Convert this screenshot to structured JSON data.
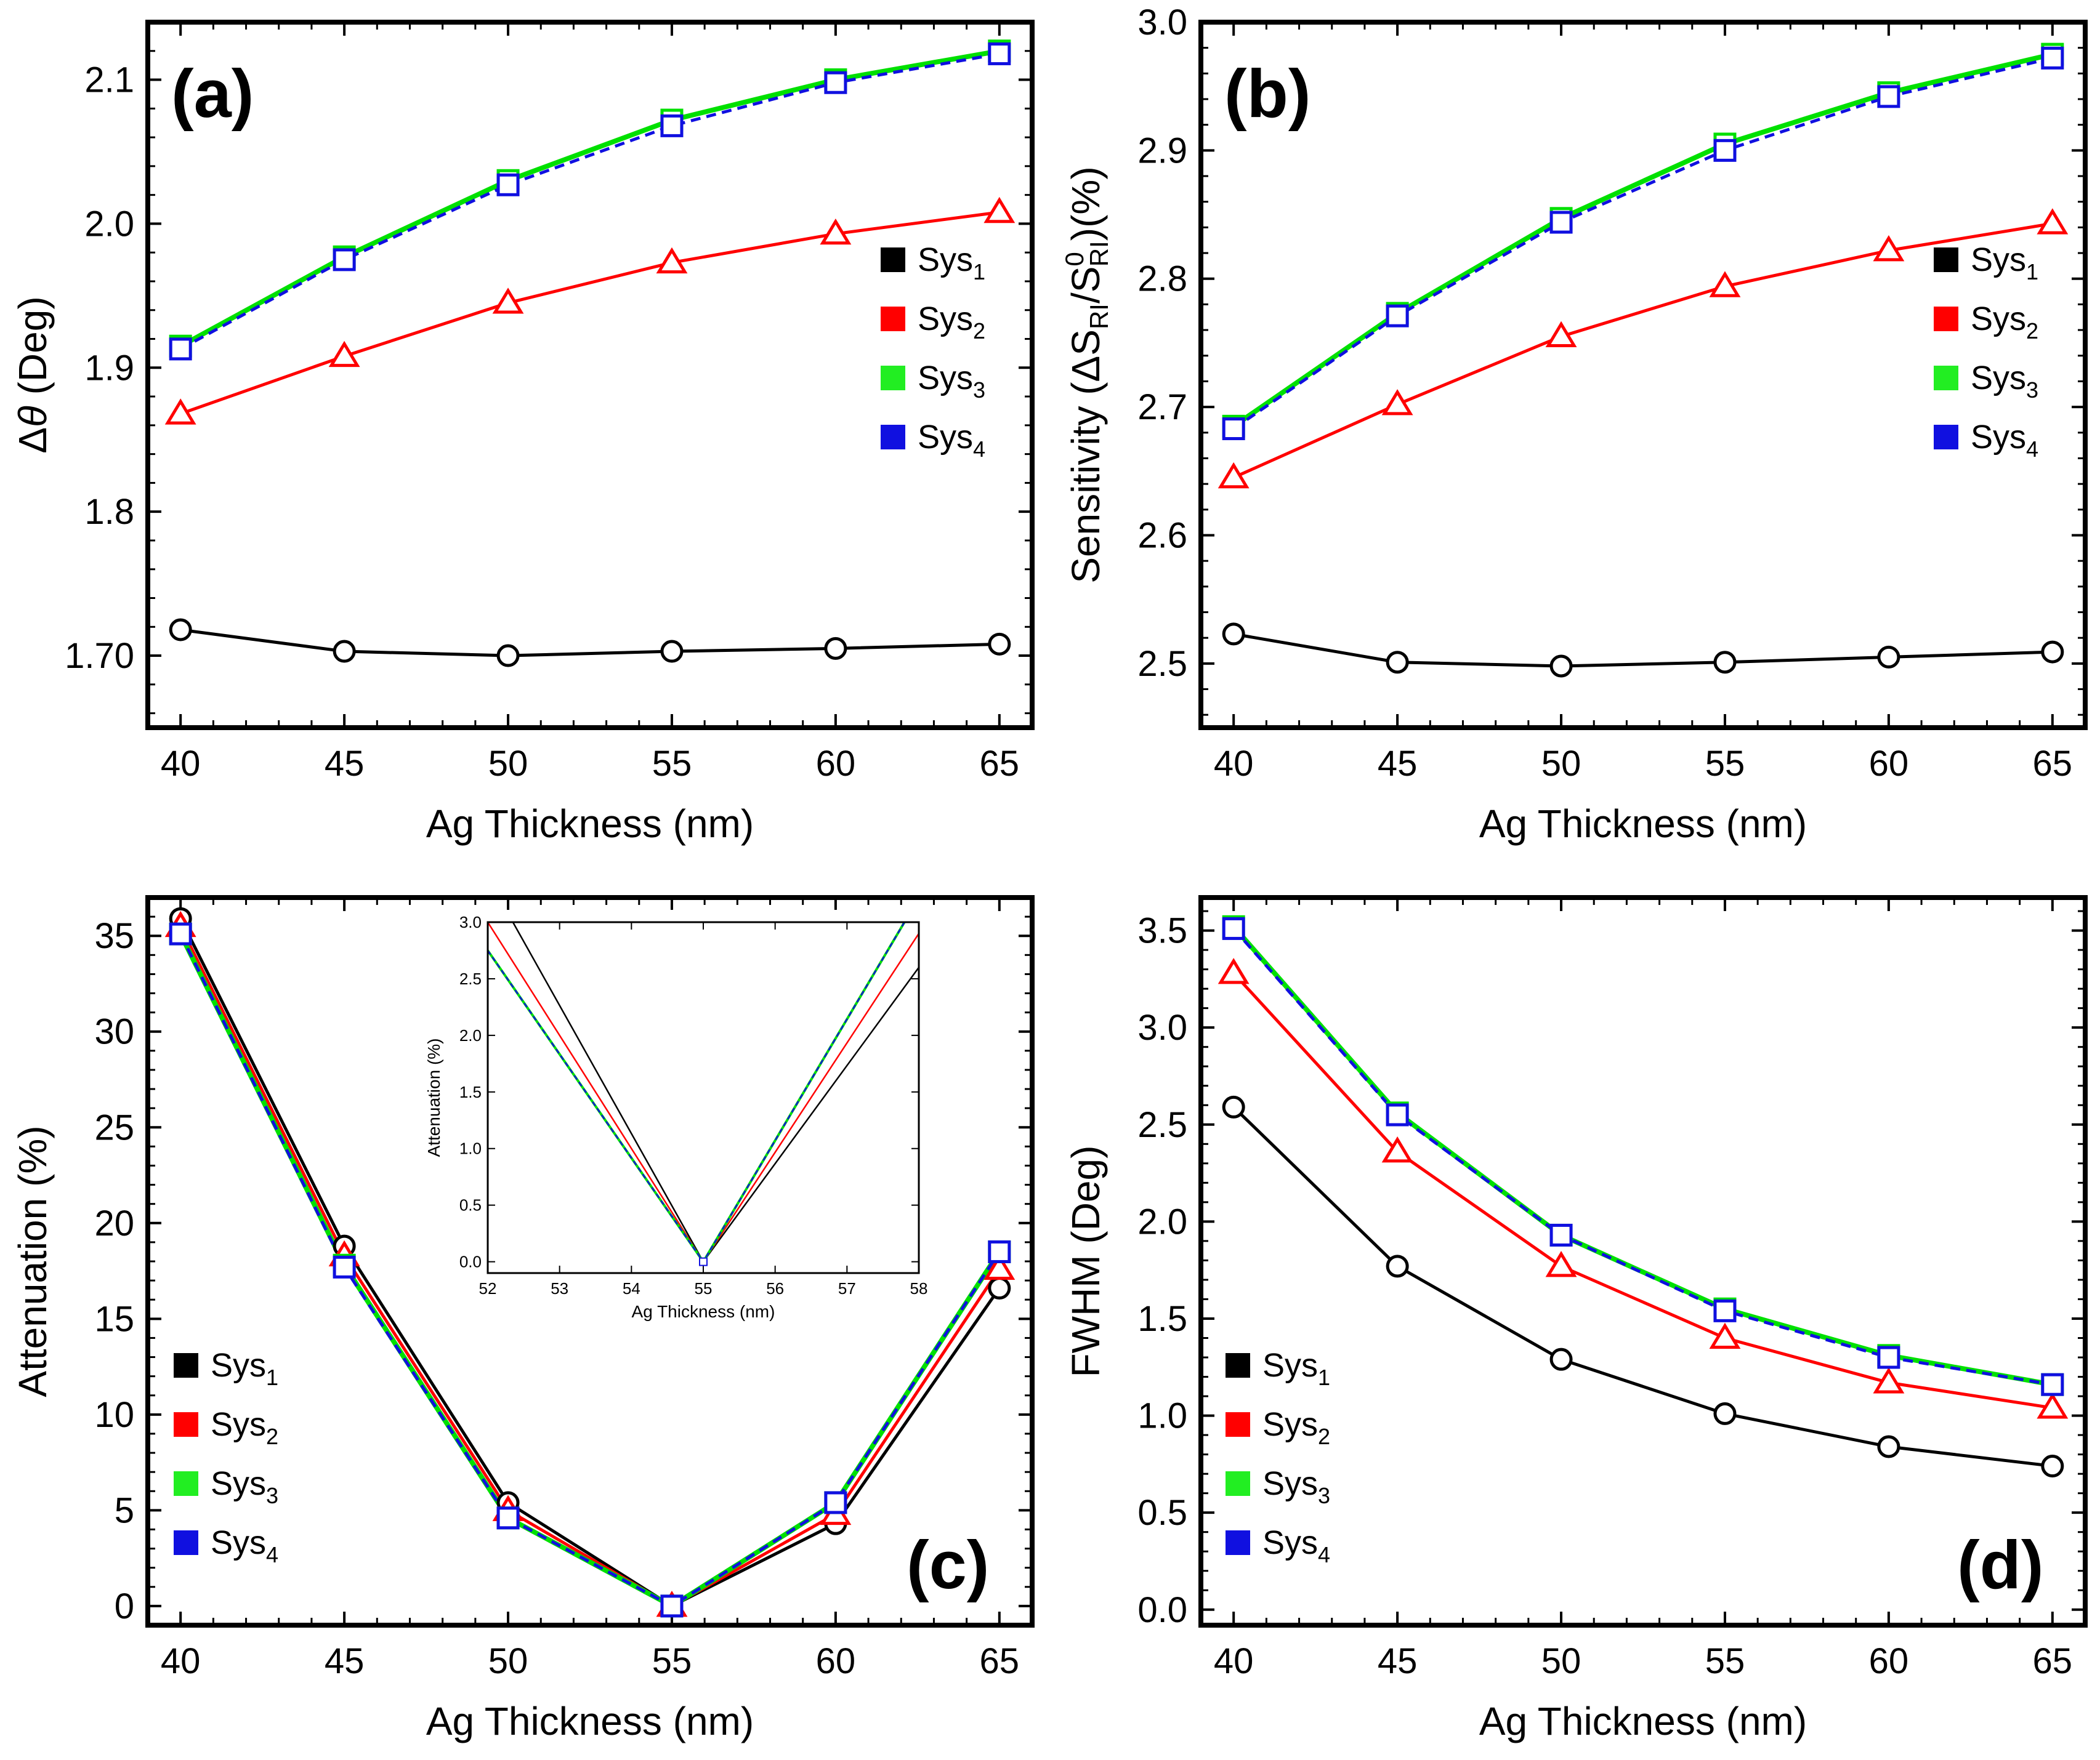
{
  "figure": {
    "panels": [
      "a",
      "b",
      "c",
      "d"
    ]
  },
  "colors": {
    "sys1": "#000000",
    "sys2": "#ff0000",
    "sys3": "#00e000",
    "sys4": "#1010e0"
  },
  "legend": [
    {
      "base": "Sys",
      "sub": "1",
      "color": "#000000"
    },
    {
      "base": "Sys",
      "sub": "2",
      "color": "#ff0000"
    },
    {
      "base": "Sys",
      "sub": "3",
      "color": "#22ee22"
    },
    {
      "base": "Sys",
      "sub": "4",
      "color": "#1010e0"
    }
  ],
  "chart_data": [
    {
      "id": "a",
      "label": "(a)",
      "type": "line",
      "xlabel": "Ag Thickness (nm)",
      "ylabel": "Δθ (Deg)",
      "ylabel_parts": {
        "delta": "Δ",
        "theta": "θ",
        "rest": " (Deg)"
      },
      "x": [
        40,
        45,
        50,
        55,
        60,
        65
      ],
      "xlim": [
        39,
        66
      ],
      "ylim": [
        1.65,
        2.14
      ],
      "xticks": [
        40,
        45,
        50,
        55,
        60,
        65
      ],
      "yticks": [
        1.7,
        1.8,
        1.9,
        2.0,
        2.1
      ],
      "ytick_labels": [
        "1.70",
        "1.8",
        "1.9",
        "2.0",
        "2.1"
      ],
      "series": [
        {
          "name": "Sys1",
          "marker": "circle",
          "values": [
            1.718,
            1.703,
            1.7,
            1.703,
            1.705,
            1.708
          ]
        },
        {
          "name": "Sys2",
          "marker": "triangle",
          "values": [
            1.868,
            1.908,
            1.945,
            1.973,
            1.993,
            2.008
          ]
        },
        {
          "name": "Sys3",
          "marker": "square",
          "values": [
            1.915,
            1.977,
            2.03,
            2.072,
            2.1,
            2.12
          ]
        },
        {
          "name": "Sys4",
          "marker": "square",
          "values": [
            1.913,
            1.975,
            2.027,
            2.068,
            2.098,
            2.118
          ]
        }
      ]
    },
    {
      "id": "b",
      "label": "(b)",
      "type": "line",
      "xlabel": "Ag Thickness (nm)",
      "ylabel": "Sensitivity (ΔSRI/S0RI)(%)",
      "ylabel_parts": {
        "pre": "Sensitivity (ΔS",
        "sub1": "RI",
        "mid": "/S",
        "sup": "0",
        "sub2": "RI",
        "post": ")(%)"
      },
      "x": [
        40,
        45,
        50,
        55,
        60,
        65
      ],
      "xlim": [
        39,
        66
      ],
      "ylim": [
        2.45,
        3.0
      ],
      "xticks": [
        40,
        45,
        50,
        55,
        60,
        65
      ],
      "yticks": [
        2.5,
        2.6,
        2.7,
        2.8,
        2.9,
        3.0
      ],
      "ytick_labels": [
        "2.5",
        "2.6",
        "2.7",
        "2.8",
        "2.9",
        "3.0"
      ],
      "series": [
        {
          "name": "Sys1",
          "marker": "circle",
          "values": [
            2.523,
            2.501,
            2.498,
            2.501,
            2.505,
            2.509
          ]
        },
        {
          "name": "Sys2",
          "marker": "triangle",
          "values": [
            2.645,
            2.702,
            2.755,
            2.794,
            2.822,
            2.843
          ]
        },
        {
          "name": "Sys3",
          "marker": "square",
          "values": [
            2.685,
            2.773,
            2.847,
            2.905,
            2.945,
            2.975
          ]
        },
        {
          "name": "Sys4",
          "marker": "square",
          "values": [
            2.683,
            2.771,
            2.844,
            2.9,
            2.942,
            2.972
          ]
        }
      ]
    },
    {
      "id": "c",
      "label": "(c)",
      "type": "line",
      "xlabel": "Ag Thickness (nm)",
      "ylabel": "Attenuation (%)",
      "x": [
        40,
        45,
        50,
        55,
        60,
        65
      ],
      "xlim": [
        39,
        66
      ],
      "ylim": [
        -1,
        37
      ],
      "xticks": [
        40,
        45,
        50,
        55,
        60,
        65
      ],
      "yticks": [
        0,
        5,
        10,
        15,
        20,
        25,
        30,
        35
      ],
      "ytick_labels": [
        "0",
        "5",
        "10",
        "15",
        "20",
        "25",
        "30",
        "35"
      ],
      "series": [
        {
          "name": "Sys1",
          "marker": "circle",
          "values": [
            35.9,
            18.8,
            5.4,
            0.0,
            4.3,
            16.6
          ]
        },
        {
          "name": "Sys2",
          "marker": "triangle",
          "values": [
            35.5,
            18.3,
            5.0,
            0.0,
            4.8,
            17.6
          ]
        },
        {
          "name": "Sys3",
          "marker": "square",
          "values": [
            35.1,
            17.8,
            4.6,
            0.0,
            5.4,
            18.5
          ]
        },
        {
          "name": "Sys4",
          "marker": "square",
          "values": [
            35.1,
            17.7,
            4.6,
            0.0,
            5.4,
            18.5
          ]
        }
      ],
      "inset": {
        "xlabel": "Ag Thickness (nm)",
        "ylabel": "Attenuation (%)",
        "xlim": [
          52,
          58
        ],
        "ylim": [
          -0.1,
          3.0
        ],
        "xticks": [
          52,
          53,
          54,
          55,
          56,
          57,
          58
        ],
        "yticks": [
          0.0,
          0.5,
          1.0,
          1.5,
          2.0,
          2.5,
          3.0
        ],
        "ytick_labels": [
          "0.0",
          "0.5",
          "1.0",
          "1.5",
          "2.0",
          "2.5",
          "3.0"
        ],
        "series": [
          {
            "name": "Sys1",
            "x": [
              52.35,
              55,
              58
            ],
            "values": [
              3.0,
              0.0,
              2.6
            ]
          },
          {
            "name": "Sys2",
            "x": [
              52,
              55,
              58
            ],
            "values": [
              3.0,
              0.0,
              2.9
            ]
          },
          {
            "name": "Sys3",
            "x": [
              52,
              55,
              57.8
            ],
            "values": [
              2.75,
              0.0,
              3.0
            ]
          },
          {
            "name": "Sys4",
            "x": [
              52,
              55,
              57.8
            ],
            "values": [
              2.75,
              0.0,
              3.0
            ]
          }
        ]
      }
    },
    {
      "id": "d",
      "label": "(d)",
      "type": "line",
      "xlabel": "Ag Thickness (nm)",
      "ylabel": "FWHM (Deg)",
      "x": [
        40,
        45,
        50,
        55,
        60,
        65
      ],
      "xlim": [
        39,
        66
      ],
      "ylim": [
        -0.08,
        3.67
      ],
      "xticks": [
        40,
        45,
        50,
        55,
        60,
        65
      ],
      "yticks": [
        0.0,
        0.5,
        1.0,
        1.5,
        2.0,
        2.5,
        3.0,
        3.5
      ],
      "ytick_labels": [
        "0.0",
        "0.5",
        "1.0",
        "1.5",
        "2.0",
        "2.5",
        "3.0",
        "3.5"
      ],
      "series": [
        {
          "name": "Sys1",
          "marker": "circle",
          "values": [
            2.59,
            1.77,
            1.29,
            1.01,
            0.84,
            0.74
          ]
        },
        {
          "name": "Sys2",
          "marker": "triangle",
          "values": [
            3.28,
            2.36,
            1.77,
            1.4,
            1.17,
            1.04
          ]
        },
        {
          "name": "Sys3",
          "marker": "square",
          "values": [
            3.52,
            2.56,
            1.93,
            1.55,
            1.31,
            1.16
          ]
        },
        {
          "name": "Sys4",
          "marker": "square",
          "values": [
            3.51,
            2.55,
            1.93,
            1.54,
            1.3,
            1.16
          ]
        }
      ]
    }
  ]
}
